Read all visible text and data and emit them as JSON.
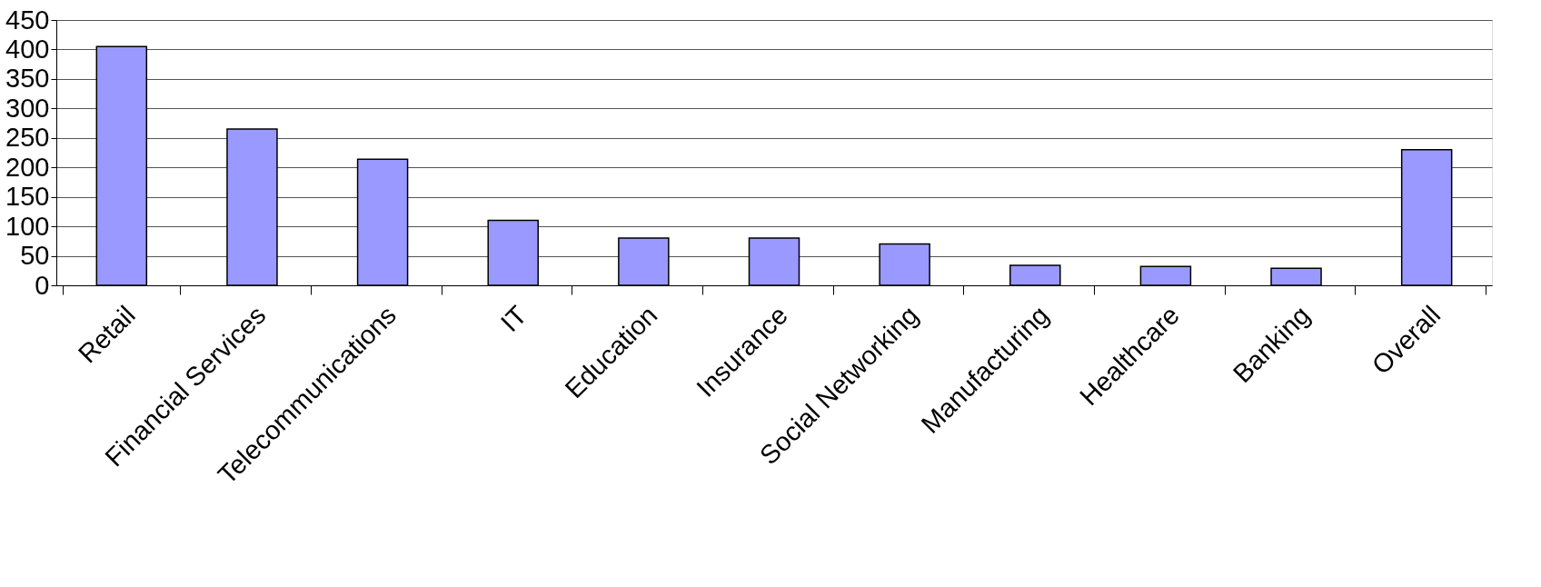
{
  "chart_data": {
    "type": "bar",
    "categories": [
      "Retail",
      "Financial Services",
      "Telecommunications",
      "IT",
      "Education",
      "Insurance",
      "Social Networking",
      "Manufacturing",
      "Healthcare",
      "Banking",
      "Overall"
    ],
    "values": [
      405,
      265,
      214,
      110,
      80,
      80,
      70,
      34,
      32,
      29,
      230
    ],
    "color": "#9999ff",
    "ylim": [
      0,
      450
    ],
    "yticks": [
      0,
      50,
      100,
      150,
      200,
      250,
      300,
      350,
      400,
      450
    ],
    "grid": "y"
  }
}
